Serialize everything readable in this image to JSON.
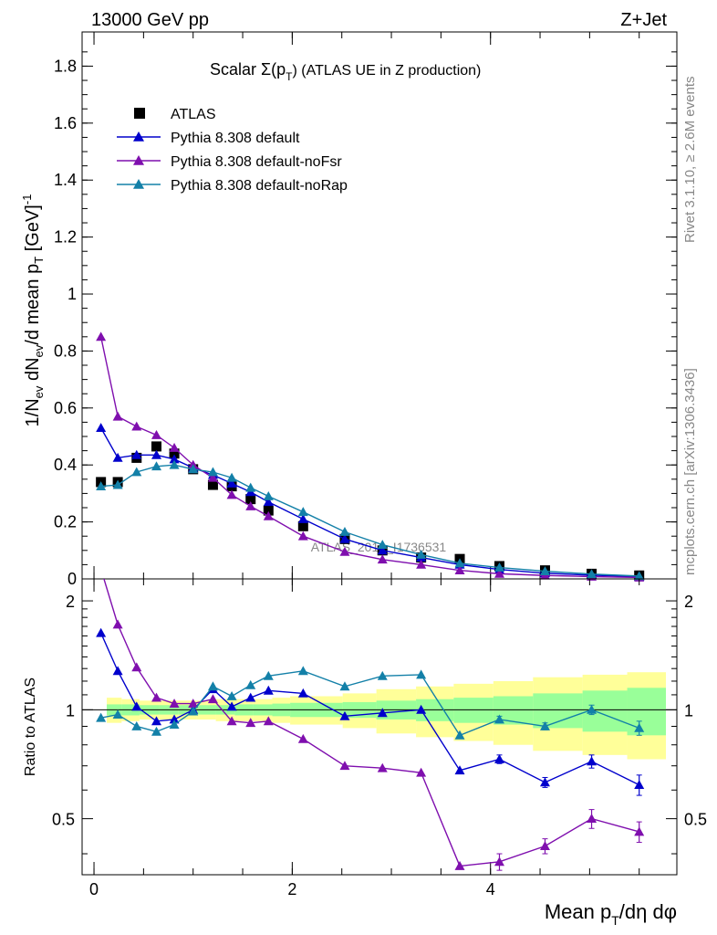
{
  "header": {
    "left": "13000 GeV pp",
    "right": "Z+Jet"
  },
  "side_labels": {
    "rivet": "Rivet 3.1.10, ≥ 2.6M events",
    "mcplots": "mcplots.cern.ch [arXiv:1306.3436]"
  },
  "watermark": "ATLAS_2019_I1736531",
  "chart_data": [
    {
      "type": "line",
      "panel": "main",
      "title": "Scalar Σ(p_T) (ATLAS UE in Z production)",
      "title_parts": {
        "main": "Scalar Σ(p",
        "sub": "T",
        "tail": ")  (ATLAS UE in Z production)"
      },
      "xlabel": "Mean p_T/dη dφ",
      "xlabel_parts": {
        "main": "Mean p",
        "sub": "T",
        "tail": "/dη dφ"
      },
      "ylabel": "1/N_ev dN_ev/d mean p_T [GeV]^-1",
      "ylabel_parts": {
        "a": "1/N",
        "a_sub": "ev",
        "b": " dN",
        "b_sub": "ev",
        "c": "/d mean p",
        "c_sub": "T",
        "d": " [GeV]",
        "d_sup": "-1"
      },
      "xlim": [
        -0.12,
        5.88
      ],
      "ylim": [
        0,
        1.92
      ],
      "x_ticks": [
        0,
        2,
        4
      ],
      "y_ticks": [
        0,
        0.2,
        0.4,
        0.6,
        0.8,
        1,
        1.2,
        1.4,
        1.6,
        1.8
      ],
      "y_tick_labels": [
        "0",
        "0.2",
        "0.4",
        "0.6",
        "0.8",
        "1",
        "1.2",
        "1.4",
        "1.6",
        "1.8"
      ],
      "legend_position": "top-left",
      "x": [
        0.07,
        0.24,
        0.43,
        0.63,
        0.81,
        1.0,
        1.2,
        1.39,
        1.58,
        1.76,
        2.11,
        2.53,
        2.91,
        3.3,
        3.69,
        4.09,
        4.55,
        5.02,
        5.5
      ],
      "series": [
        {
          "name": "ATLAS",
          "marker": "square",
          "color": "#000000",
          "values": [
            0.34,
            0.34,
            0.425,
            0.465,
            0.44,
            0.385,
            0.33,
            0.325,
            0.28,
            0.24,
            0.185,
            0.14,
            0.1,
            0.075,
            0.07,
            0.045,
            0.03,
            0.018,
            0.012
          ]
        },
        {
          "name": "Pythia 8.308 default",
          "marker": "triangle",
          "color": "#0000cc",
          "values": [
            0.53,
            0.425,
            0.435,
            0.435,
            0.42,
            0.39,
            0.365,
            0.335,
            0.305,
            0.27,
            0.21,
            0.14,
            0.1,
            0.075,
            0.05,
            0.033,
            0.02,
            0.013,
            0.008
          ]
        },
        {
          "name": "Pythia 8.308 default-noFsr",
          "marker": "triangle",
          "color": "#7f0fae",
          "values": [
            0.85,
            0.57,
            0.535,
            0.505,
            0.46,
            0.4,
            0.355,
            0.295,
            0.255,
            0.22,
            0.15,
            0.095,
            0.068,
            0.05,
            0.03,
            0.018,
            0.012,
            0.008,
            0.005
          ]
        },
        {
          "name": "Pythia 8.308 default-noRap",
          "marker": "triangle",
          "color": "#1380a8",
          "values": [
            0.325,
            0.33,
            0.375,
            0.395,
            0.4,
            0.385,
            0.375,
            0.355,
            0.32,
            0.29,
            0.235,
            0.165,
            0.12,
            0.085,
            0.055,
            0.04,
            0.027,
            0.017,
            0.01
          ]
        }
      ]
    },
    {
      "type": "line",
      "panel": "ratio",
      "ylabel": "Ratio to ATLAS",
      "xlim": [
        -0.12,
        5.88
      ],
      "ylim": [
        0.35,
        2.3
      ],
      "y_ticks": [
        0.5,
        1,
        2
      ],
      "y_tick_labels": [
        "0.5",
        "1",
        "2"
      ],
      "x_ticks": [
        0,
        2,
        4
      ],
      "x_tick_labels": [
        "0",
        "2",
        "4"
      ],
      "reference_line": 1,
      "bins": [
        0,
        0.15,
        0.33,
        0.53,
        0.72,
        0.91,
        1.1,
        1.29,
        1.48,
        1.67,
        1.85,
        2.38,
        2.72,
        3.12,
        3.5,
        3.9,
        4.3,
        4.8,
        5.25,
        5.75
      ],
      "band_green_half": [
        0.035,
        0.035,
        0.03,
        0.03,
        0.03,
        0.03,
        0.03,
        0.035,
        0.035,
        0.04,
        0.045,
        0.05,
        0.06,
        0.07,
        0.08,
        0.09,
        0.11,
        0.13,
        0.15
      ],
      "band_yellow_half": [
        0.08,
        0.07,
        0.06,
        0.06,
        0.06,
        0.06,
        0.07,
        0.07,
        0.07,
        0.08,
        0.09,
        0.11,
        0.14,
        0.16,
        0.18,
        0.2,
        0.23,
        0.25,
        0.27
      ],
      "x": [
        0.07,
        0.24,
        0.43,
        0.63,
        0.81,
        1.0,
        1.2,
        1.39,
        1.58,
        1.76,
        2.11,
        2.53,
        2.91,
        3.3,
        3.69,
        4.09,
        4.55,
        5.02,
        5.5
      ],
      "series": [
        {
          "name": "Pythia 8.308 default",
          "color": "#0000cc",
          "values": [
            1.63,
            1.28,
            1.02,
            0.93,
            0.94,
            1.0,
            1.14,
            1.02,
            1.08,
            1.13,
            1.11,
            0.96,
            0.98,
            1.0,
            0.68,
            0.73,
            0.63,
            0.72,
            0.62
          ],
          "errors": [
            0.01,
            0.01,
            0.01,
            0.01,
            0.01,
            0.01,
            0.01,
            0.01,
            0.01,
            0.01,
            0.01,
            0.01,
            0.01,
            0.01,
            0.01,
            0.02,
            0.02,
            0.03,
            0.04
          ]
        },
        {
          "name": "Pythia 8.308 default-noFsr",
          "color": "#7f0fae",
          "values": [
            2.45,
            1.72,
            1.31,
            1.08,
            1.04,
            1.04,
            1.07,
            0.93,
            0.92,
            0.93,
            0.83,
            0.7,
            0.69,
            0.67,
            0.37,
            0.38,
            0.42,
            0.5,
            0.46
          ],
          "errors": [
            0.01,
            0.01,
            0.01,
            0.01,
            0.01,
            0.01,
            0.01,
            0.01,
            0.01,
            0.01,
            0.01,
            0.01,
            0.01,
            0.01,
            0.01,
            0.02,
            0.02,
            0.03,
            0.03
          ]
        },
        {
          "name": "Pythia 8.308 default-noRap",
          "color": "#1380a8",
          "values": [
            0.95,
            0.97,
            0.9,
            0.87,
            0.91,
            0.99,
            1.16,
            1.09,
            1.17,
            1.24,
            1.28,
            1.16,
            1.24,
            1.25,
            0.85,
            0.94,
            0.9,
            1.0,
            0.89
          ],
          "errors": [
            0.01,
            0.01,
            0.01,
            0.01,
            0.01,
            0.01,
            0.01,
            0.01,
            0.01,
            0.01,
            0.01,
            0.01,
            0.01,
            0.01,
            0.01,
            0.02,
            0.02,
            0.03,
            0.04
          ]
        }
      ]
    }
  ]
}
